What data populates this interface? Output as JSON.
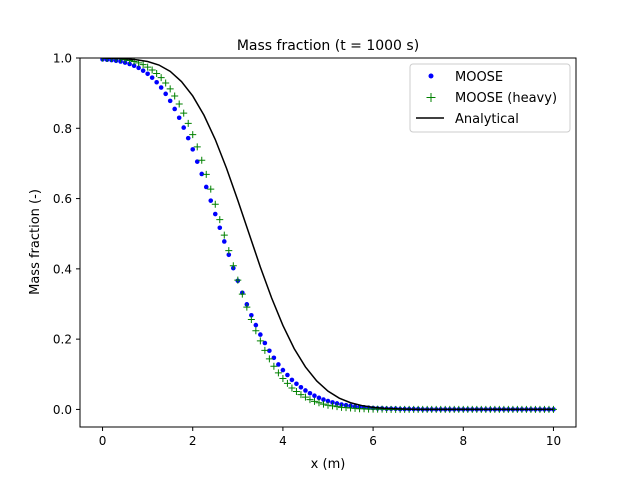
{
  "chart_data": {
    "type": "scatter",
    "title": "Mass fraction (t = 1000 s)",
    "xlabel": "x (m)",
    "ylabel": "Mass fraction (-)",
    "xlim": [
      -0.5,
      10.5
    ],
    "ylim": [
      -0.05,
      1.0
    ],
    "xticks": [
      0,
      2,
      4,
      6,
      8,
      10
    ],
    "yticks": [
      0.0,
      0.2,
      0.4,
      0.6,
      0.8,
      1.0
    ],
    "xtick_labels": [
      "0",
      "2",
      "4",
      "6",
      "8",
      "10"
    ],
    "ytick_labels": [
      "0.0",
      "0.2",
      "0.4",
      "0.6",
      "0.8",
      "1.0"
    ],
    "grid": false,
    "legend_position": "upper-right",
    "series": [
      {
        "name": "MOOSE",
        "marker": "dot",
        "color": "#0000ff",
        "x": [
          0.0,
          0.1,
          0.2,
          0.3,
          0.4,
          0.5,
          0.6,
          0.7,
          0.8,
          0.9,
          1.0,
          1.1,
          1.2,
          1.3,
          1.4,
          1.5,
          1.6,
          1.7,
          1.8,
          1.9,
          2.0,
          2.1,
          2.2,
          2.3,
          2.4,
          2.5,
          2.6,
          2.7,
          2.8,
          2.9,
          3.0,
          3.1,
          3.2,
          3.3,
          3.4,
          3.5,
          3.6,
          3.7,
          3.8,
          3.9,
          4.0,
          4.1,
          4.2,
          4.3,
          4.4,
          4.5,
          4.6,
          4.7,
          4.8,
          4.9,
          5.0,
          5.1,
          5.2,
          5.3,
          5.4,
          5.5,
          5.6,
          5.7,
          5.8,
          5.9,
          6.0,
          6.1,
          6.2,
          6.3,
          6.4,
          6.5,
          6.6,
          6.7,
          6.8,
          6.9,
          7.0,
          7.1,
          7.2,
          7.3,
          7.4,
          7.5,
          7.6,
          7.7,
          7.8,
          7.9,
          8.0,
          8.1,
          8.2,
          8.3,
          8.4,
          8.5,
          8.6,
          8.7,
          8.8,
          8.9,
          9.0,
          9.1,
          9.2,
          9.3,
          9.4,
          9.5,
          9.6,
          9.7,
          9.8,
          9.9,
          10.0
        ],
        "y": [
          0.996,
          0.995,
          0.994,
          0.992,
          0.99,
          0.987,
          0.983,
          0.978,
          0.972,
          0.964,
          0.955,
          0.944,
          0.931,
          0.916,
          0.898,
          0.878,
          0.855,
          0.83,
          0.802,
          0.772,
          0.74,
          0.705,
          0.67,
          0.633,
          0.594,
          0.556,
          0.517,
          0.478,
          0.44,
          0.402,
          0.366,
          0.332,
          0.299,
          0.268,
          0.24,
          0.213,
          0.189,
          0.167,
          0.147,
          0.128,
          0.112,
          0.098,
          0.084,
          0.073,
          0.063,
          0.054,
          0.046,
          0.039,
          0.033,
          0.028,
          0.024,
          0.02,
          0.017,
          0.014,
          0.012,
          0.01,
          0.008,
          0.007,
          0.006,
          0.005,
          0.004,
          0.003,
          0.003,
          0.002,
          0.002,
          0.002,
          0.001,
          0.001,
          0.001,
          0.001,
          0.001,
          0.0,
          0.0,
          0.0,
          0.0,
          0.0,
          0.0,
          0.0,
          0.0,
          0.0,
          0.0,
          0.0,
          0.0,
          0.0,
          0.0,
          0.0,
          0.0,
          0.0,
          0.0,
          0.0,
          0.0,
          0.0,
          0.0,
          0.0,
          0.0,
          0.0,
          0.0,
          0.0,
          0.0,
          0.0,
          0.0
        ]
      },
      {
        "name": "MOOSE (heavy)",
        "marker": "plus",
        "color": "#008000",
        "x": [
          0.0,
          0.1,
          0.2,
          0.3,
          0.4,
          0.5,
          0.6,
          0.7,
          0.8,
          0.9,
          1.0,
          1.1,
          1.2,
          1.3,
          1.4,
          1.5,
          1.6,
          1.7,
          1.8,
          1.9,
          2.0,
          2.1,
          2.2,
          2.3,
          2.4,
          2.5,
          2.6,
          2.7,
          2.8,
          2.9,
          3.0,
          3.1,
          3.2,
          3.3,
          3.4,
          3.5,
          3.6,
          3.7,
          3.8,
          3.9,
          4.0,
          4.1,
          4.2,
          4.3,
          4.4,
          4.5,
          4.6,
          4.7,
          4.8,
          4.9,
          5.0,
          5.1,
          5.2,
          5.3,
          5.4,
          5.5,
          5.6,
          5.7,
          5.8,
          5.9,
          6.0,
          6.1,
          6.2,
          6.3,
          6.4,
          6.5,
          6.6,
          6.7,
          6.8,
          6.9,
          7.0,
          7.1,
          7.2,
          7.3,
          7.4,
          7.5,
          7.6,
          7.7,
          7.8,
          7.9,
          8.0,
          8.1,
          8.2,
          8.3,
          8.4,
          8.5,
          8.6,
          8.7,
          8.8,
          8.9,
          9.0,
          9.1,
          9.2,
          9.3,
          9.4,
          9.5,
          9.6,
          9.7,
          9.8,
          9.9,
          10.0
        ],
        "y": [
          1.0,
          0.999,
          0.999,
          0.998,
          0.997,
          0.995,
          0.993,
          0.99,
          0.986,
          0.981,
          0.974,
          0.966,
          0.956,
          0.944,
          0.929,
          0.912,
          0.892,
          0.869,
          0.843,
          0.814,
          0.782,
          0.747,
          0.709,
          0.669,
          0.627,
          0.584,
          0.54,
          0.496,
          0.452,
          0.409,
          0.368,
          0.328,
          0.291,
          0.256,
          0.224,
          0.195,
          0.168,
          0.144,
          0.123,
          0.104,
          0.088,
          0.074,
          0.061,
          0.051,
          0.042,
          0.035,
          0.028,
          0.023,
          0.019,
          0.015,
          0.012,
          0.01,
          0.008,
          0.006,
          0.005,
          0.004,
          0.003,
          0.002,
          0.002,
          0.001,
          0.001,
          0.001,
          0.001,
          0.0,
          0.0,
          0.0,
          0.0,
          0.0,
          0.0,
          0.0,
          0.0,
          0.0,
          0.0,
          0.0,
          0.0,
          0.0,
          0.0,
          0.0,
          0.0,
          0.0,
          0.0,
          0.0,
          0.0,
          0.0,
          0.0,
          0.0,
          0.0,
          0.0,
          0.0,
          0.0,
          0.0,
          0.0,
          0.0,
          0.0,
          0.0,
          0.0,
          0.0,
          0.0,
          0.0,
          0.0,
          0.0
        ]
      },
      {
        "name": "Analytical",
        "marker": "line",
        "color": "#000000",
        "x": [
          0.0,
          0.25,
          0.5,
          0.75,
          1.0,
          1.25,
          1.5,
          1.75,
          2.0,
          2.25,
          2.5,
          2.75,
          3.0,
          3.25,
          3.5,
          3.75,
          4.0,
          4.25,
          4.5,
          4.75,
          5.0,
          5.25,
          5.5,
          5.75,
          6.0,
          6.25,
          6.5,
          6.75,
          7.0,
          7.5,
          8.0,
          8.5,
          9.0,
          9.5,
          10.0
        ],
        "y": [
          1.0,
          0.999,
          0.998,
          0.995,
          0.99,
          0.98,
          0.962,
          0.933,
          0.892,
          0.837,
          0.768,
          0.686,
          0.595,
          0.5,
          0.405,
          0.317,
          0.239,
          0.173,
          0.121,
          0.081,
          0.052,
          0.032,
          0.019,
          0.011,
          0.006,
          0.003,
          0.002,
          0.001,
          0.0,
          0.0,
          0.0,
          0.0,
          0.0,
          0.0,
          0.0
        ]
      }
    ]
  }
}
